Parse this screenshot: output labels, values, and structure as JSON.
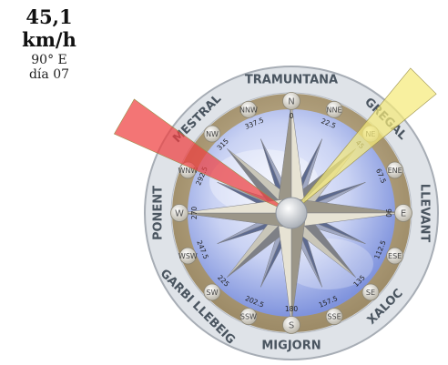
{
  "readout": {
    "speed": "45,1 km/h",
    "direction": "90° E",
    "day": "día 07"
  },
  "compass": {
    "wind_names": [
      "TRAMUNTANA",
      "GREGAL",
      "LLEVANT",
      "XALOC",
      "MIGJORN",
      "GARBI LLEBEIG",
      "PONENT",
      "MESTRAL"
    ],
    "cardinals": [
      "N",
      "E",
      "S",
      "W"
    ],
    "intercardinals": [
      "NE",
      "SE",
      "SW",
      "NW"
    ],
    "secondary": [
      "NNE",
      "ENE",
      "ESE",
      "SSE",
      "SSW",
      "WSW",
      "WNW",
      "NNW"
    ],
    "degree_labels": [
      "0",
      "22.5",
      "45",
      "67.5",
      "90",
      "112.5",
      "135",
      "157.5",
      "180",
      "202.5",
      "225",
      "247.5",
      "270",
      "292.5",
      "315",
      "337.5"
    ]
  },
  "pointers": {
    "yellow_bearing_deg": 45,
    "red_bearing_deg": 300,
    "yellow_color": "#f5ea7a",
    "red_color": "#ef4040"
  }
}
